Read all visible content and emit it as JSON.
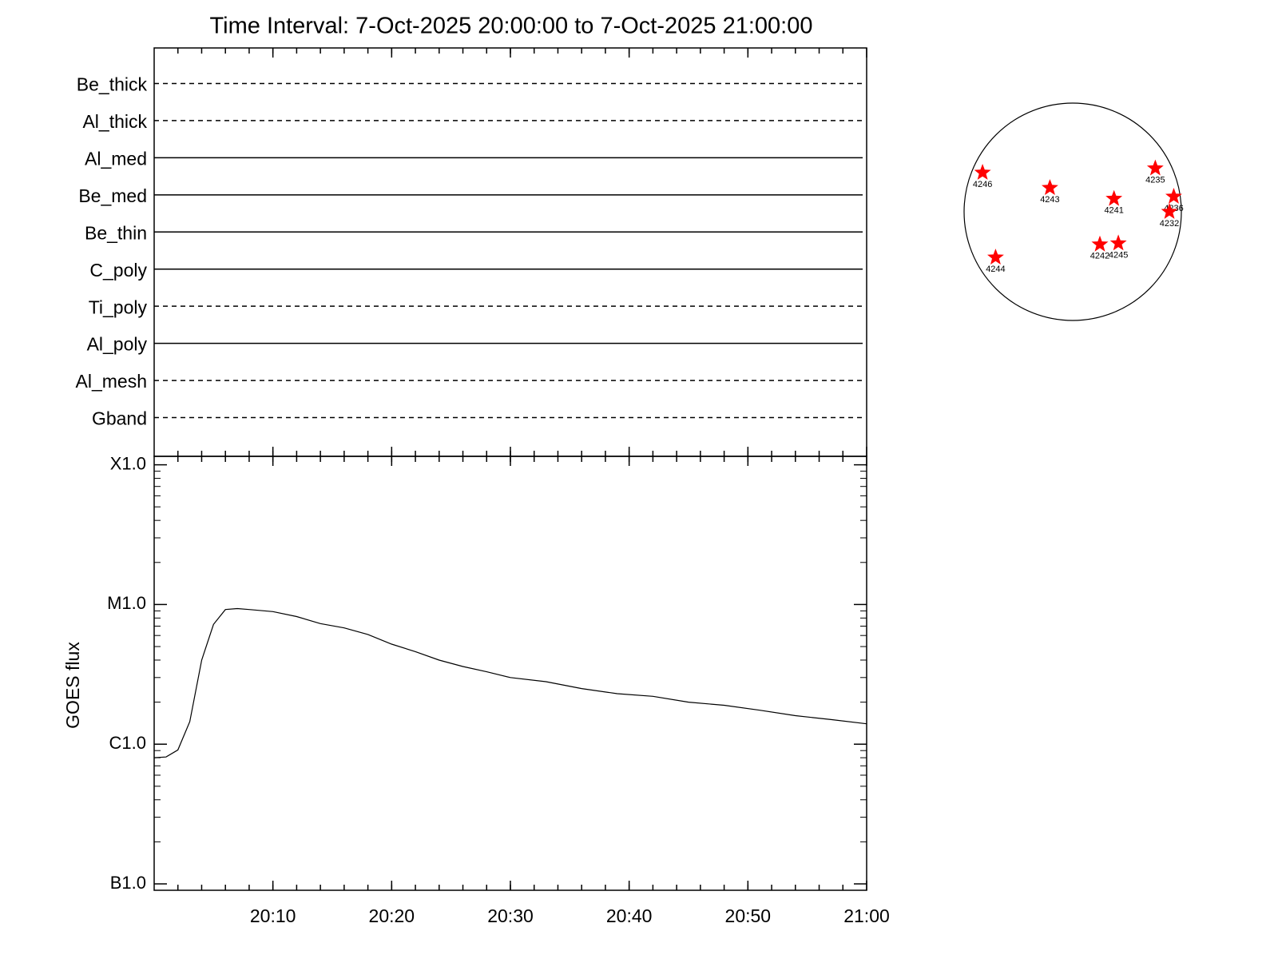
{
  "chart_data": [
    {
      "type": "line",
      "ylabel": "GOES flux",
      "log_scale": true,
      "color": "#000000",
      "x": [
        "20:00",
        "20:01",
        "20:02",
        "20:03",
        "20:04",
        "20:05",
        "20:06",
        "20:07",
        "20:08",
        "20:10",
        "20:12",
        "20:14",
        "20:16",
        "20:18",
        "20:20",
        "20:22",
        "20:24",
        "20:26",
        "20:28",
        "20:30",
        "20:33",
        "20:36",
        "20:39",
        "20:42",
        "20:45",
        "20:48",
        "20:51",
        "20:54",
        "20:57",
        "21:00"
      ],
      "values": [
        8e-07,
        8.1e-07,
        9.1e-07,
        1.45e-06,
        4e-06,
        7.2e-06,
        9.2e-06,
        9.35e-06,
        9.2e-06,
        8.9e-06,
        8.2e-06,
        7.3e-06,
        6.8e-06,
        6.1e-06,
        5.2e-06,
        4.6e-06,
        4e-06,
        3.6e-06,
        3.3e-06,
        3e-06,
        2.8e-06,
        2.5e-06,
        2.3e-06,
        2.2e-06,
        2e-06,
        1.9e-06,
        1.75e-06,
        1.6e-06,
        1.5e-06,
        1.4e-06
      ],
      "xlim": [
        "20:00",
        "21:00"
      ],
      "xticks": [
        "20:10",
        "20:20",
        "20:30",
        "20:40",
        "20:50",
        "21:00"
      ],
      "ylim": [
        9e-08,
        0.000115
      ],
      "yticks": [
        {
          "value": 1e-07,
          "label": "B1.0"
        },
        {
          "value": 1e-06,
          "label": "C1.0"
        },
        {
          "value": 1e-05,
          "label": "M1.0"
        },
        {
          "value": 0.0001,
          "label": "X1.0"
        }
      ]
    },
    {
      "type": "channels",
      "title": "Time Interval:  7-Oct-2025 20:00:00 to  7-Oct-2025 21:00:00",
      "channels": [
        {
          "name": "Be_thick",
          "style": "dashed"
        },
        {
          "name": "Al_thick",
          "style": "dashed"
        },
        {
          "name": "Al_med",
          "style": "solid"
        },
        {
          "name": "Be_med",
          "style": "solid"
        },
        {
          "name": "Be_thin",
          "style": "solid"
        },
        {
          "name": "C_poly",
          "style": "solid"
        },
        {
          "name": "Ti_poly",
          "style": "dashed"
        },
        {
          "name": "Al_poly",
          "style": "solid"
        },
        {
          "name": "Al_mesh",
          "style": "dashed"
        },
        {
          "name": "Gband",
          "style": "dashed"
        }
      ]
    },
    {
      "type": "disk",
      "color": "#ff0000",
      "regions": [
        {
          "label": "4246",
          "x": -0.83,
          "y": 0.36
        },
        {
          "label": "4243",
          "x": -0.21,
          "y": 0.22
        },
        {
          "label": "4241",
          "x": 0.38,
          "y": 0.12
        },
        {
          "label": "4235",
          "x": 0.76,
          "y": 0.4
        },
        {
          "label": "4236",
          "x": 0.93,
          "y": 0.14
        },
        {
          "label": "4232",
          "x": 0.89,
          "y": 0.0
        },
        {
          "label": "4242",
          "x": 0.25,
          "y": -0.3
        },
        {
          "label": "4245",
          "x": 0.42,
          "y": -0.29
        },
        {
          "label": "4244",
          "x": -0.71,
          "y": -0.42
        }
      ]
    }
  ]
}
